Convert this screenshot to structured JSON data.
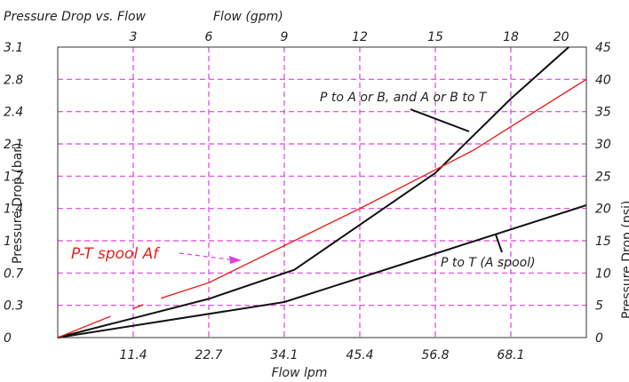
{
  "chart_data": {
    "type": "line",
    "title": "Pressure Drop vs. Flow",
    "x_top_label": "Flow (gpm)",
    "x_top_ticks": [
      "3",
      "6",
      "9",
      "12",
      "15",
      "18",
      "20"
    ],
    "x_top_lim": [
      0,
      21
    ],
    "x_bottom_label": "Flow lpm",
    "x_bottom_ticks": [
      "11.4",
      "22.7",
      "34.1",
      "45.4",
      "56.8",
      "68.1"
    ],
    "y_left_label": "Pressure Drop (bar)",
    "y_left_ticks": [
      "0",
      "0.3",
      "0.7",
      "1",
      "1.4",
      "1.7",
      "2.1",
      "2.4",
      "2.8",
      "3.1"
    ],
    "y_right_label": "Pressure Drop (psi)",
    "y_right_ticks": [
      "0",
      "5",
      "10",
      "15",
      "20",
      "25",
      "30",
      "35",
      "40",
      "45"
    ],
    "y_right_lim": [
      0,
      45
    ],
    "grid": true,
    "colors": {
      "grid": "#e040e0",
      "axis": "#333333",
      "series_black": "#111111",
      "series_red": "#e8201a"
    },
    "series": [
      {
        "name": "P to A or B, and A or B to T",
        "color": "#111111",
        "x_gpm": [
          0,
          6,
          9.4,
          15,
          18,
          20.3
        ],
        "y_psi": [
          0,
          6,
          10.5,
          25.5,
          37,
          45
        ]
      },
      {
        "name": "P to T (A spool)",
        "color": "#111111",
        "x_gpm": [
          0,
          9,
          21
        ],
        "y_psi": [
          0,
          5.5,
          20.5
        ]
      },
      {
        "name": "P-T spool Af",
        "color": "#e8201a",
        "x_gpm": [
          0,
          6,
          9.4,
          12,
          16.5,
          21
        ],
        "y_psi": [
          0,
          8.5,
          15,
          20,
          29,
          40
        ]
      }
    ],
    "dashed_segments": [
      {
        "series": "P-T spool Af",
        "color": "#e8201a",
        "x_gpm": [
          [
            0,
            2.1
          ],
          [
            3,
            3.4
          ],
          [
            4.1,
            6
          ]
        ],
        "y_psi": [
          [
            0,
            3.3
          ],
          [
            4.5,
            5.1
          ],
          [
            6.1,
            8.5
          ]
        ]
      }
    ],
    "annotations": [
      {
        "text": "P to A or B, and A or B to T",
        "target_series": 0
      },
      {
        "text": "P to T (A spool)",
        "target_series": 1
      },
      {
        "text": "P-T spool Af",
        "target_series": 2
      }
    ]
  }
}
